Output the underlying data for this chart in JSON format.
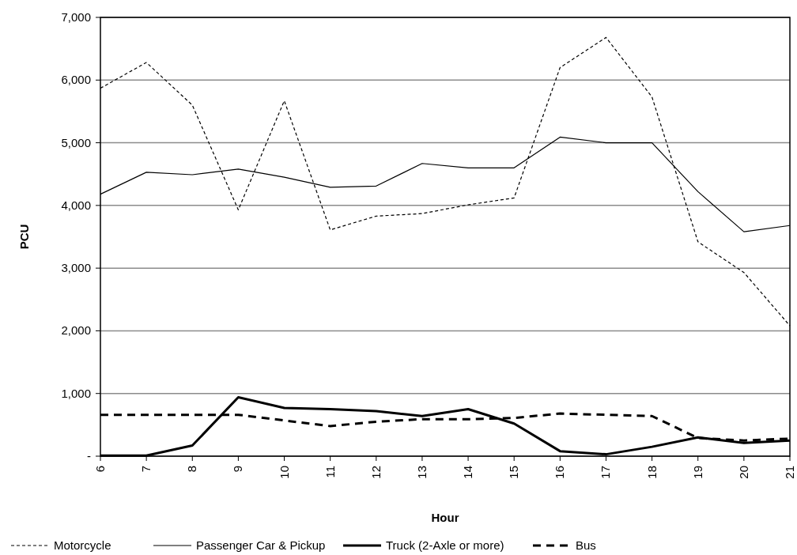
{
  "chart_data": {
    "type": "line",
    "xlabel": "Hour",
    "ylabel": "PCU",
    "categories": [
      "6",
      "7",
      "8",
      "9",
      "10",
      "11",
      "12",
      "13",
      "14",
      "15",
      "16",
      "17",
      "18",
      "19",
      "20",
      "21"
    ],
    "ylim": [
      0,
      7000
    ],
    "yticks": [
      {
        "value": 0,
        "label": "-"
      },
      {
        "value": 1000,
        "label": "1,000"
      },
      {
        "value": 2000,
        "label": "2,000"
      },
      {
        "value": 3000,
        "label": "3,000"
      },
      {
        "value": 4000,
        "label": "4,000"
      },
      {
        "value": 5000,
        "label": "5,000"
      },
      {
        "value": 6000,
        "label": "6,000"
      },
      {
        "value": 7000,
        "label": "7,000"
      }
    ],
    "grid": "y",
    "legend": "bottom",
    "marker": "none",
    "series": [
      {
        "name": "Motorcycle",
        "color": "#000000",
        "line_style": "dashed",
        "values": [
          5870,
          6280,
          5600,
          3930,
          5670,
          3610,
          3830,
          3870,
          4010,
          4120,
          6200,
          6680,
          5730,
          3420,
          2930,
          2080
        ]
      },
      {
        "name": "Passenger Car & Pickup",
        "color": "#000000",
        "line_style": "solid",
        "values": [
          4180,
          4530,
          4490,
          4580,
          4450,
          4290,
          4310,
          4670,
          4600,
          4600,
          5090,
          5000,
          5000,
          4220,
          3580,
          3680
        ]
      },
      {
        "name": "Truck (2-Axle or more)",
        "color": "#000000",
        "line_style": "solid",
        "values": [
          10,
          10,
          170,
          940,
          770,
          750,
          720,
          640,
          750,
          520,
          80,
          30,
          150,
          300,
          210,
          250
        ]
      },
      {
        "name": "Bus",
        "color": "#000000",
        "line_style": "dashed",
        "values": [
          660,
          660,
          660,
          660,
          570,
          480,
          550,
          590,
          590,
          610,
          680,
          660,
          640,
          290,
          250,
          280
        ]
      }
    ]
  }
}
